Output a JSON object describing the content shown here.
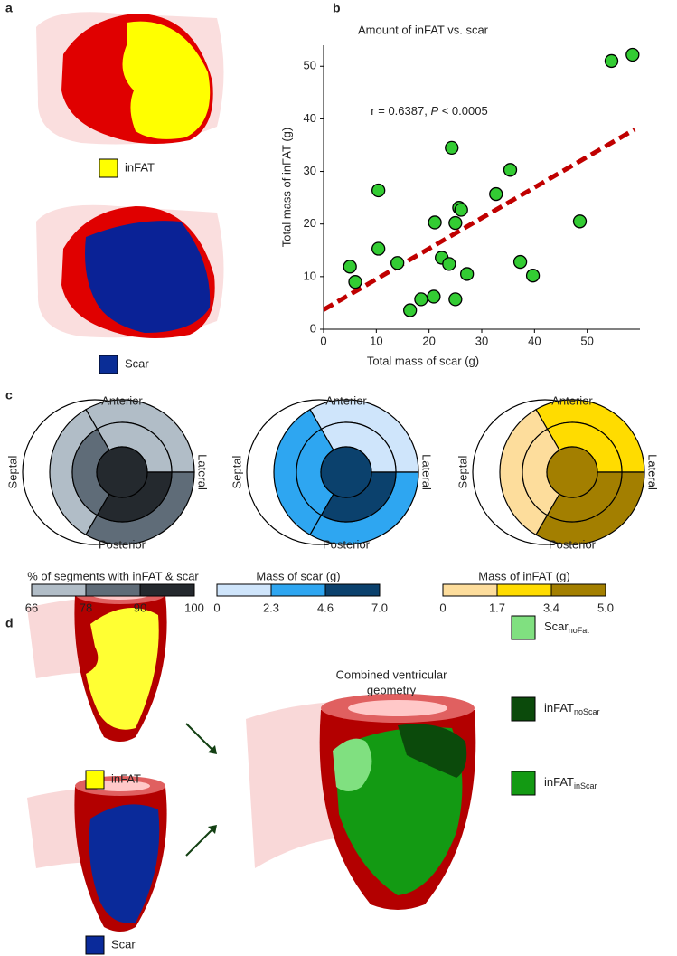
{
  "panel_labels": [
    "a",
    "b",
    "c",
    "d"
  ],
  "panel_a": {
    "legend": [
      {
        "label": "inFAT",
        "color": "#ffff00"
      },
      {
        "label": "Scar",
        "color": "#0a2d96"
      }
    ]
  },
  "chart_data": {
    "type": "scatter",
    "title": "Amount of inFAT vs. scar",
    "x_label": "Total mass of scar (g)",
    "y_label": "Total mass of inFAT (g)",
    "annotation": [
      "r = 0.6387, ",
      "P",
      " < 0.0005"
    ],
    "x": [
      5.0,
      6.0,
      10.4,
      10.4,
      14.0,
      16.4,
      18.5,
      20.9,
      21.1,
      22.4,
      23.8,
      24.3,
      25.0,
      25.0,
      25.7,
      26.1,
      27.2,
      32.7,
      35.4,
      37.3,
      39.7,
      48.6,
      54.6,
      58.6
    ],
    "values": [
      11.9,
      9.0,
      15.3,
      26.4,
      12.6,
      3.6,
      5.7,
      6.2,
      20.3,
      13.6,
      12.4,
      34.5,
      5.7,
      20.2,
      23.1,
      22.7,
      10.5,
      25.7,
      30.3,
      12.8,
      10.2,
      20.5,
      51.0,
      52.2
    ],
    "color": "#33cc33",
    "fit": {
      "x": [
        0,
        59
      ],
      "y": [
        3.7,
        38
      ],
      "color": "#c00000"
    },
    "xlim": [
      0,
      60
    ],
    "ylim": [
      0,
      54
    ],
    "xticks": [
      0,
      10,
      20,
      30,
      40,
      50
    ],
    "yticks": [
      0,
      10,
      20,
      30,
      40,
      50
    ]
  },
  "panel_c": {
    "orientation": {
      "anterior": "Anterior",
      "posterior": "Posterior",
      "septal": "Septal",
      "lateral": "Lateral"
    },
    "maps": [
      {
        "title": "% of segments with inFAT & scar",
        "ticks": [
          "66",
          "78",
          "90",
          "100"
        ],
        "colors": [
          "#b1bdc7",
          "#5f6c78",
          "#24292e"
        ]
      },
      {
        "title": "Mass of scar (g)",
        "ticks": [
          "0",
          "2.3",
          "4.6",
          "7.0"
        ],
        "colors": [
          "#cfe5fb",
          "#2ea6f1",
          "#0b416d"
        ]
      },
      {
        "title": "Mass of inFAT (g)",
        "ticks": [
          "0",
          "1.7",
          "3.4",
          "5.0"
        ],
        "colors": [
          "#fddd9c",
          "#ffdc00",
          "#a37f00"
        ]
      }
    ]
  },
  "panel_d": {
    "inputs": [
      "inFAT",
      "Scar"
    ],
    "title": [
      "Combined ventricular",
      "geometry"
    ],
    "legend": [
      {
        "name": "Scar",
        "sub": "noFat",
        "color": "#80e080"
      },
      {
        "name": "inFAT",
        "sub": "noScar",
        "color": "#0b4a0b"
      },
      {
        "name": "inFAT",
        "sub": "inScar",
        "color": "#139a13"
      }
    ]
  }
}
